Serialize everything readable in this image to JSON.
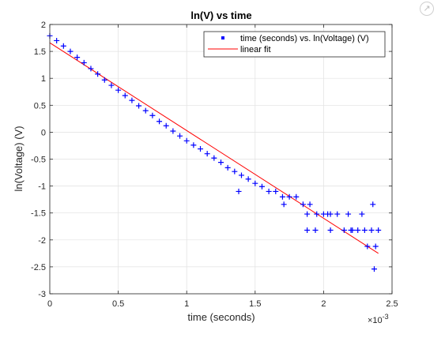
{
  "toolbar": {
    "expand_icon": "export-arrow-icon"
  },
  "chart_data": {
    "type": "scatter",
    "title": "ln(V) vs time",
    "xlabel": "time (seconds)",
    "ylabel": "ln(Voltage) (V)",
    "x_exponent_label": "×10",
    "x_exponent_value": "-3",
    "x_scale": 0.001,
    "xlim": [
      0,
      0.0025
    ],
    "ylim": [
      -3,
      2
    ],
    "xticks": [
      0,
      0.0005,
      0.001,
      0.0015,
      0.002,
      0.0025
    ],
    "xtick_labels": [
      "0",
      "0.5",
      "1",
      "1.5",
      "2",
      "2.5"
    ],
    "yticks": [
      -3,
      -2.5,
      -2,
      -1.5,
      -1,
      -0.5,
      0,
      0.5,
      1,
      1.5,
      2
    ],
    "ytick_labels": [
      "-3",
      "-2.5",
      "-2",
      "-1.5",
      "-1",
      "-0.5",
      "0",
      "0.5",
      "1",
      "1.5",
      "2"
    ],
    "grid": true,
    "legend_position": "top-right",
    "series": [
      {
        "name": "time (seconds) vs. ln(Voltage) (V)",
        "kind": "points",
        "color": "#0000ff",
        "marker": "+",
        "x": [
          0.0,
          5e-05,
          0.0001,
          0.00015,
          0.0002,
          0.00025,
          0.0003,
          0.00035,
          0.0004,
          0.00045,
          0.0005,
          0.00055,
          0.0006,
          0.00065,
          0.0007,
          0.00075,
          0.0008,
          0.00085,
          0.0009,
          0.00095,
          0.001,
          0.00105,
          0.0011,
          0.00115,
          0.0012,
          0.00125,
          0.0013,
          0.00135,
          0.0014,
          0.00145,
          0.0015,
          0.00155,
          0.0016,
          0.00165,
          0.0017,
          0.00175,
          0.0018,
          0.00185,
          0.0019,
          0.00195,
          0.002,
          0.00205,
          0.0021,
          0.00215,
          0.0022,
          0.00225,
          0.0023,
          0.00235,
          0.0024,
          0.00138,
          0.00171,
          0.00188,
          0.00205,
          0.00221,
          0.00232,
          0.00238,
          0.00188,
          0.00194,
          0.00203,
          0.00218,
          0.00228,
          0.00236,
          0.00237
        ],
        "y": [
          1.79,
          1.7,
          1.6,
          1.5,
          1.39,
          1.29,
          1.18,
          1.08,
          0.97,
          0.87,
          0.78,
          0.68,
          0.59,
          0.49,
          0.4,
          0.31,
          0.2,
          0.12,
          0.02,
          -0.07,
          -0.16,
          -0.24,
          -0.31,
          -0.4,
          -0.48,
          -0.56,
          -0.66,
          -0.73,
          -0.8,
          -0.87,
          -0.95,
          -1.01,
          -1.1,
          -1.1,
          -1.2,
          -1.2,
          -1.2,
          -1.34,
          -1.34,
          -1.52,
          -1.52,
          -1.52,
          -1.52,
          -1.82,
          -1.82,
          -1.82,
          -1.82,
          -1.82,
          -1.82,
          -1.1,
          -1.34,
          -1.52,
          -1.82,
          -1.82,
          -2.12,
          -2.12,
          -1.82,
          -1.82,
          -1.52,
          -1.52,
          -1.52,
          -1.34,
          -2.54
        ]
      },
      {
        "name": "linear fit",
        "kind": "line",
        "color": "#ff0000",
        "x": [
          0.0,
          0.0024
        ],
        "y": [
          1.66,
          -2.25
        ]
      }
    ]
  }
}
